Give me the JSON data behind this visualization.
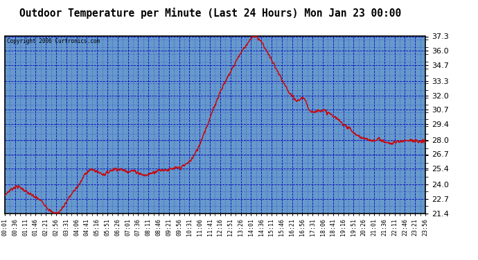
{
  "title": "Outdoor Temperature per Minute (Last 24 Hours) Mon Jan 23 00:00",
  "copyright": "Copyright 2006 Curtronics.com",
  "yticks": [
    21.4,
    22.7,
    24.0,
    25.4,
    26.7,
    28.0,
    29.4,
    30.7,
    32.0,
    33.3,
    34.7,
    36.0,
    37.3
  ],
  "ymin": 21.4,
  "ymax": 37.3,
  "line_color": "#cc0000",
  "bg_color": "#6699cc",
  "outer_bg": "#ffffff",
  "grid_color": "#0000bb",
  "title_fontsize": 11,
  "xtick_labels": [
    "00:01",
    "00:36",
    "01:11",
    "01:46",
    "02:21",
    "02:56",
    "03:31",
    "04:06",
    "04:41",
    "05:16",
    "05:51",
    "06:26",
    "07:01",
    "07:36",
    "08:11",
    "08:46",
    "09:21",
    "09:56",
    "10:31",
    "11:06",
    "11:41",
    "12:16",
    "12:51",
    "13:26",
    "14:01",
    "14:36",
    "15:11",
    "15:46",
    "16:21",
    "16:56",
    "17:31",
    "18:06",
    "18:41",
    "19:16",
    "19:51",
    "20:26",
    "21:01",
    "21:36",
    "22:11",
    "22:46",
    "23:21",
    "23:56"
  ],
  "temp_keypoints": [
    [
      0,
      23.0
    ],
    [
      20,
      23.5
    ],
    [
      40,
      23.8
    ],
    [
      60,
      23.6
    ],
    [
      80,
      23.2
    ],
    [
      100,
      22.9
    ],
    [
      120,
      22.6
    ],
    [
      140,
      22.1
    ],
    [
      160,
      21.5
    ],
    [
      180,
      21.4
    ],
    [
      200,
      22.0
    ],
    [
      220,
      22.8
    ],
    [
      240,
      23.5
    ],
    [
      260,
      24.2
    ],
    [
      280,
      25.1
    ],
    [
      300,
      25.3
    ],
    [
      320,
      25.1
    ],
    [
      340,
      24.9
    ],
    [
      360,
      25.2
    ],
    [
      380,
      25.4
    ],
    [
      400,
      25.3
    ],
    [
      420,
      25.2
    ],
    [
      440,
      25.2
    ],
    [
      460,
      25.0
    ],
    [
      480,
      24.8
    ],
    [
      500,
      25.0
    ],
    [
      520,
      25.2
    ],
    [
      540,
      25.3
    ],
    [
      560,
      25.3
    ],
    [
      580,
      25.4
    ],
    [
      600,
      25.5
    ],
    [
      620,
      25.8
    ],
    [
      640,
      26.3
    ],
    [
      660,
      27.2
    ],
    [
      680,
      28.5
    ],
    [
      700,
      29.8
    ],
    [
      720,
      31.2
    ],
    [
      740,
      32.5
    ],
    [
      760,
      33.5
    ],
    [
      780,
      34.5
    ],
    [
      800,
      35.5
    ],
    [
      820,
      36.3
    ],
    [
      840,
      37.0
    ],
    [
      855,
      37.3
    ],
    [
      870,
      37.1
    ],
    [
      885,
      36.5
    ],
    [
      900,
      35.8
    ],
    [
      920,
      34.8
    ],
    [
      940,
      33.8
    ],
    [
      960,
      32.8
    ],
    [
      980,
      32.0
    ],
    [
      1000,
      31.5
    ],
    [
      1020,
      31.8
    ],
    [
      1040,
      30.8
    ],
    [
      1060,
      30.5
    ],
    [
      1080,
      30.7
    ],
    [
      1100,
      30.5
    ],
    [
      1120,
      30.2
    ],
    [
      1140,
      29.8
    ],
    [
      1160,
      29.4
    ],
    [
      1180,
      29.0
    ],
    [
      1200,
      28.5
    ],
    [
      1220,
      28.2
    ],
    [
      1240,
      28.0
    ],
    [
      1260,
      27.9
    ],
    [
      1280,
      28.1
    ],
    [
      1300,
      27.8
    ],
    [
      1320,
      27.7
    ],
    [
      1340,
      27.8
    ],
    [
      1360,
      27.9
    ],
    [
      1380,
      28.0
    ],
    [
      1400,
      27.9
    ],
    [
      1420,
      27.8
    ],
    [
      1439,
      27.9
    ]
  ]
}
